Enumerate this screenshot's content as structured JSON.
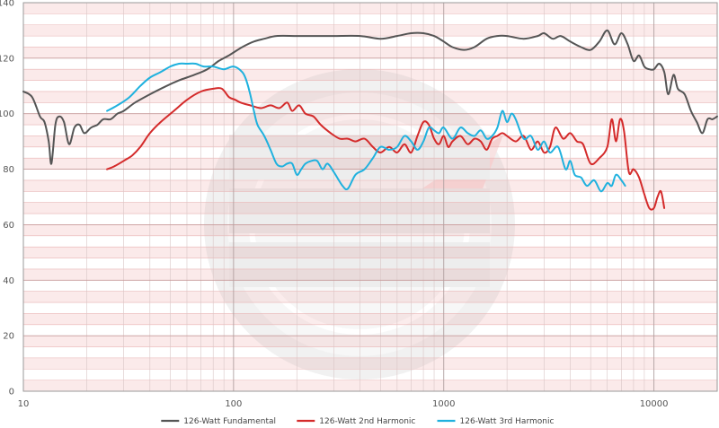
{
  "chart_data": {
    "type": "line",
    "title": "",
    "xlabel": "",
    "ylabel": "",
    "x_scale": "log",
    "xlim": [
      10,
      20000
    ],
    "ylim": [
      0,
      140
    ],
    "grid": true,
    "legend_position": "bottom",
    "x_ticks": [
      {
        "value": 10,
        "label": "10"
      },
      {
        "value": 100,
        "label": "100"
      },
      {
        "value": 1000,
        "label": "1000"
      },
      {
        "value": 10000,
        "label": "10000"
      }
    ],
    "y_ticks": [
      {
        "value": 0,
        "label": "0"
      },
      {
        "value": 20,
        "label": "20"
      },
      {
        "value": 40,
        "label": "40"
      },
      {
        "value": 60,
        "label": "60"
      },
      {
        "value": 80,
        "label": "80"
      },
      {
        "value": 100,
        "label": "100"
      },
      {
        "value": 120,
        "label": "120"
      },
      {
        "value": 140,
        "label": "140"
      }
    ],
    "series": [
      {
        "name": "126-Watt Fundamental",
        "color": "#555555",
        "points": [
          [
            10,
            108
          ],
          [
            11,
            106
          ],
          [
            12,
            99
          ],
          [
            12.6,
            97
          ],
          [
            13.2,
            90
          ],
          [
            13.6,
            82
          ],
          [
            14.2,
            96
          ],
          [
            14.8,
            99
          ],
          [
            15.6,
            97
          ],
          [
            16.5,
            89
          ],
          [
            17.5,
            95
          ],
          [
            18.5,
            96
          ],
          [
            19.5,
            93
          ],
          [
            21,
            95
          ],
          [
            22.5,
            96
          ],
          [
            24,
            98
          ],
          [
            26,
            98
          ],
          [
            28,
            100
          ],
          [
            30,
            101
          ],
          [
            34,
            104
          ],
          [
            40,
            107
          ],
          [
            48,
            110
          ],
          [
            55,
            112
          ],
          [
            65,
            114
          ],
          [
            75,
            116
          ],
          [
            85,
            119
          ],
          [
            95,
            121
          ],
          [
            110,
            124
          ],
          [
            125,
            126
          ],
          [
            140,
            127
          ],
          [
            160,
            128
          ],
          [
            200,
            128
          ],
          [
            250,
            128
          ],
          [
            300,
            128
          ],
          [
            400,
            128
          ],
          [
            500,
            127
          ],
          [
            600,
            128
          ],
          [
            700,
            129
          ],
          [
            800,
            129
          ],
          [
            900,
            128
          ],
          [
            1000,
            126
          ],
          [
            1100,
            124
          ],
          [
            1250,
            123
          ],
          [
            1400,
            124
          ],
          [
            1600,
            127
          ],
          [
            1800,
            128
          ],
          [
            2000,
            128
          ],
          [
            2400,
            127
          ],
          [
            2800,
            128
          ],
          [
            3000,
            129
          ],
          [
            3300,
            127
          ],
          [
            3600,
            128
          ],
          [
            4000,
            126
          ],
          [
            4500,
            124
          ],
          [
            5000,
            123
          ],
          [
            5500,
            126
          ],
          [
            6000,
            130
          ],
          [
            6500,
            125
          ],
          [
            7000,
            129
          ],
          [
            7500,
            125
          ],
          [
            8000,
            119
          ],
          [
            8500,
            121
          ],
          [
            9000,
            117
          ],
          [
            9500,
            116
          ],
          [
            10000,
            116
          ],
          [
            10600,
            118
          ],
          [
            11200,
            115
          ],
          [
            11700,
            107
          ],
          [
            12400,
            114
          ],
          [
            13000,
            109
          ],
          [
            14000,
            107
          ],
          [
            15000,
            101
          ],
          [
            16000,
            97
          ],
          [
            17000,
            93
          ],
          [
            18000,
            98
          ],
          [
            19000,
            98
          ],
          [
            20000,
            99
          ]
        ]
      },
      {
        "name": "126-Watt 2nd Harmonic",
        "color": "#d42a2a",
        "points": [
          [
            25,
            80
          ],
          [
            27,
            81
          ],
          [
            30,
            83
          ],
          [
            33,
            85
          ],
          [
            36,
            88
          ],
          [
            40,
            93
          ],
          [
            45,
            97
          ],
          [
            52,
            101
          ],
          [
            60,
            105
          ],
          [
            70,
            108
          ],
          [
            80,
            109
          ],
          [
            88,
            109
          ],
          [
            95,
            106
          ],
          [
            102,
            105
          ],
          [
            108,
            104
          ],
          [
            120,
            103
          ],
          [
            135,
            102
          ],
          [
            150,
            103
          ],
          [
            165,
            102
          ],
          [
            180,
            104
          ],
          [
            190,
            101
          ],
          [
            205,
            103
          ],
          [
            220,
            100
          ],
          [
            240,
            99
          ],
          [
            260,
            96
          ],
          [
            290,
            93
          ],
          [
            320,
            91
          ],
          [
            350,
            91
          ],
          [
            380,
            90
          ],
          [
            420,
            91
          ],
          [
            460,
            88
          ],
          [
            500,
            86
          ],
          [
            550,
            88
          ],
          [
            600,
            86
          ],
          [
            650,
            89
          ],
          [
            700,
            86
          ],
          [
            750,
            92
          ],
          [
            800,
            97
          ],
          [
            850,
            96
          ],
          [
            900,
            91
          ],
          [
            950,
            89
          ],
          [
            1000,
            92
          ],
          [
            1050,
            88
          ],
          [
            1100,
            90
          ],
          [
            1200,
            92
          ],
          [
            1300,
            89
          ],
          [
            1400,
            91
          ],
          [
            1500,
            90
          ],
          [
            1600,
            87
          ],
          [
            1700,
            91
          ],
          [
            1800,
            92
          ],
          [
            1900,
            93
          ],
          [
            2000,
            92
          ],
          [
            2200,
            90
          ],
          [
            2400,
            92
          ],
          [
            2600,
            87
          ],
          [
            2800,
            90
          ],
          [
            3000,
            86
          ],
          [
            3200,
            88
          ],
          [
            3400,
            95
          ],
          [
            3700,
            91
          ],
          [
            4000,
            93
          ],
          [
            4300,
            90
          ],
          [
            4600,
            89
          ],
          [
            5000,
            82
          ],
          [
            5500,
            84
          ],
          [
            6000,
            88
          ],
          [
            6300,
            98
          ],
          [
            6600,
            90
          ],
          [
            6900,
            98
          ],
          [
            7200,
            94
          ],
          [
            7600,
            79
          ],
          [
            8000,
            80
          ],
          [
            8500,
            77
          ],
          [
            9000,
            71
          ],
          [
            9500,
            66
          ],
          [
            10000,
            66
          ],
          [
            10400,
            70
          ],
          [
            10800,
            72
          ],
          [
            11200,
            66
          ]
        ]
      },
      {
        "name": "126-Watt 3rd Harmonic",
        "color": "#1fb1de",
        "points": [
          [
            25,
            101
          ],
          [
            28,
            103
          ],
          [
            32,
            106
          ],
          [
            36,
            110
          ],
          [
            40,
            113
          ],
          [
            45,
            115
          ],
          [
            50,
            117
          ],
          [
            55,
            118
          ],
          [
            60,
            118
          ],
          [
            66,
            118
          ],
          [
            72,
            117
          ],
          [
            80,
            117
          ],
          [
            90,
            116
          ],
          [
            100,
            117
          ],
          [
            110,
            115
          ],
          [
            115,
            112
          ],
          [
            120,
            107
          ],
          [
            125,
            101
          ],
          [
            130,
            96
          ],
          [
            140,
            92
          ],
          [
            150,
            87
          ],
          [
            160,
            82
          ],
          [
            170,
            81
          ],
          [
            180,
            82
          ],
          [
            190,
            82
          ],
          [
            200,
            78
          ],
          [
            210,
            80
          ],
          [
            220,
            82
          ],
          [
            235,
            83
          ],
          [
            250,
            83
          ],
          [
            265,
            80
          ],
          [
            280,
            82
          ],
          [
            300,
            79
          ],
          [
            330,
            74
          ],
          [
            350,
            73
          ],
          [
            380,
            78
          ],
          [
            420,
            80
          ],
          [
            460,
            84
          ],
          [
            500,
            88
          ],
          [
            550,
            87
          ],
          [
            600,
            88
          ],
          [
            650,
            92
          ],
          [
            700,
            90
          ],
          [
            750,
            87
          ],
          [
            800,
            90
          ],
          [
            850,
            95
          ],
          [
            900,
            94
          ],
          [
            950,
            93
          ],
          [
            1000,
            95
          ],
          [
            1100,
            91
          ],
          [
            1200,
            95
          ],
          [
            1300,
            93
          ],
          [
            1400,
            92
          ],
          [
            1500,
            94
          ],
          [
            1600,
            91
          ],
          [
            1700,
            92
          ],
          [
            1800,
            95
          ],
          [
            1900,
            101
          ],
          [
            2000,
            97
          ],
          [
            2100,
            100
          ],
          [
            2200,
            98
          ],
          [
            2400,
            91
          ],
          [
            2600,
            92
          ],
          [
            2800,
            87
          ],
          [
            3000,
            90
          ],
          [
            3200,
            86
          ],
          [
            3500,
            88
          ],
          [
            3800,
            80
          ],
          [
            4000,
            83
          ],
          [
            4200,
            78
          ],
          [
            4500,
            77
          ],
          [
            4800,
            74
          ],
          [
            5200,
            76
          ],
          [
            5600,
            72
          ],
          [
            6000,
            75
          ],
          [
            6300,
            74
          ],
          [
            6600,
            78
          ],
          [
            7000,
            76
          ],
          [
            7300,
            74
          ]
        ]
      }
    ]
  }
}
